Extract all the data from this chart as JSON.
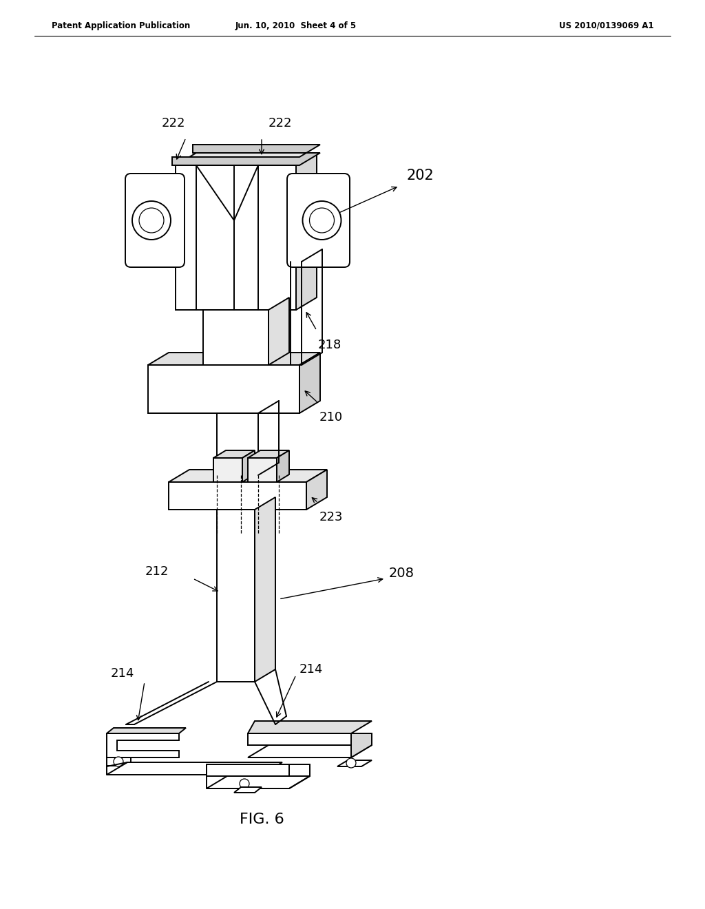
{
  "bg_color": "#ffffff",
  "line_color": "#000000",
  "header_left": "Patent Application Publication",
  "header_center": "Jun. 10, 2010  Sheet 4 of 5",
  "header_right": "US 2010/0139069 A1",
  "fig_label": "FIG. 6",
  "lw": 1.4
}
